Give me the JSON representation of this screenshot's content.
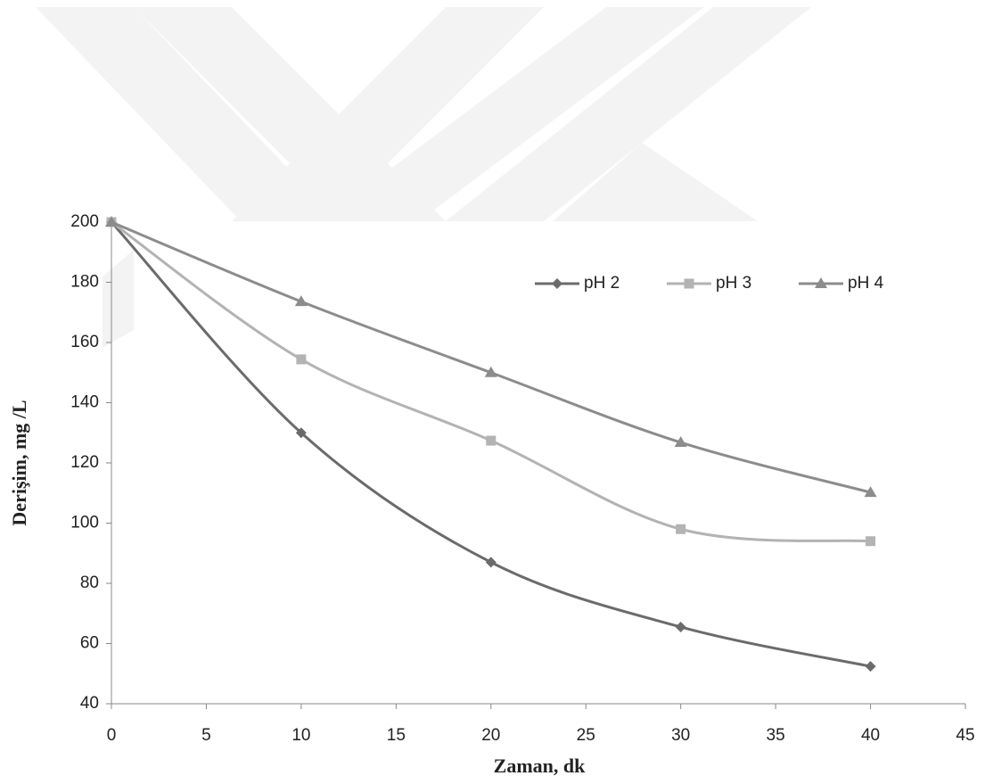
{
  "chart_data": {
    "type": "line",
    "x_label": "Zaman, dk",
    "y_label": "Derişim, mg /L",
    "x": [
      0,
      10,
      20,
      30,
      40
    ],
    "series": [
      {
        "name": "pH 2",
        "color": "#6b6b6b",
        "marker": "diamond",
        "values": [
          200,
          130,
          87,
          65.5,
          52.4
        ]
      },
      {
        "name": "pH 3",
        "color": "#b3b3b3",
        "marker": "square",
        "values": [
          200,
          154.4,
          127.4,
          98,
          94
        ]
      },
      {
        "name": "pH 4",
        "color": "#8c8c8c",
        "marker": "triangle",
        "values": [
          200,
          173.6,
          150,
          126.8,
          110.2
        ]
      }
    ],
    "xlim": [
      0,
      45
    ],
    "xticks": [
      0,
      5,
      10,
      15,
      20,
      25,
      30,
      35,
      40,
      45
    ],
    "ylim": [
      40,
      200
    ],
    "yticks": [
      40,
      60,
      80,
      100,
      120,
      140,
      160,
      180,
      200
    ],
    "smooth": true,
    "grid": false
  }
}
